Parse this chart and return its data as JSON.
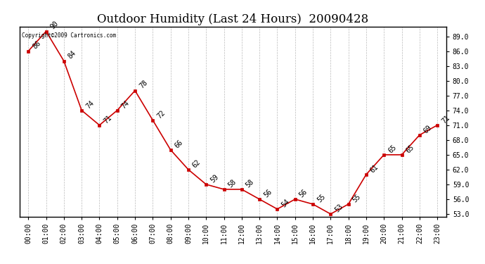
{
  "title": "Outdoor Humidity (Last 24 Hours)  20090428",
  "copyright": "Copyright©2009 Cartronics.com",
  "x_labels": [
    "00:00",
    "01:00",
    "02:00",
    "03:00",
    "04:00",
    "05:00",
    "06:00",
    "07:00",
    "08:00",
    "09:00",
    "10:00",
    "11:00",
    "12:00",
    "13:00",
    "14:00",
    "15:00",
    "16:00",
    "17:00",
    "18:00",
    "19:00",
    "20:00",
    "21:00",
    "22:00",
    "23:00"
  ],
  "y_values": [
    86,
    90,
    84,
    74,
    71,
    74,
    78,
    72,
    66,
    62,
    59,
    58,
    58,
    56,
    54,
    56,
    55,
    53,
    55,
    61,
    65,
    65,
    69,
    71
  ],
  "data_labels": [
    "86",
    "90",
    "84",
    "74",
    "71",
    "74",
    "78",
    "72",
    "66",
    "62",
    "59",
    "58",
    "58",
    "56",
    "54",
    "56",
    "55",
    "53",
    "55",
    "61",
    "65",
    "65",
    "69",
    "71"
  ],
  "ylim": [
    52.5,
    91.0
  ],
  "yticks_right": [
    53.0,
    56.0,
    59.0,
    62.0,
    65.0,
    68.0,
    71.0,
    74.0,
    77.0,
    80.0,
    83.0,
    86.0,
    89.0
  ],
  "line_color": "#cc0000",
  "marker_color": "#cc0000",
  "bg_color": "#ffffff",
  "grid_color": "#bbbbbb",
  "title_fontsize": 12,
  "tick_fontsize": 7,
  "annotation_fontsize": 7,
  "label_color": "#000000"
}
